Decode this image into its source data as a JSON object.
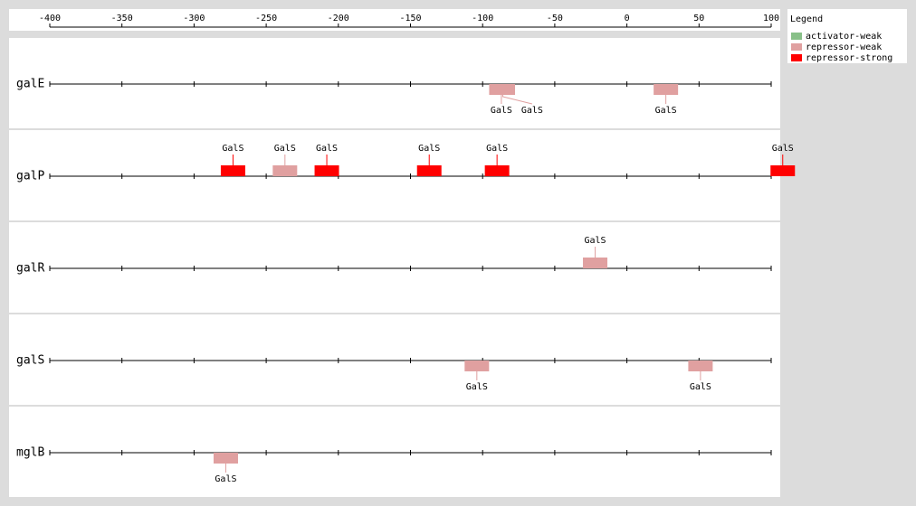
{
  "chart_data": {
    "type": "site-map",
    "legend_title": "Legend",
    "legend": [
      {
        "name": "activator-weak",
        "color": "#88c088"
      },
      {
        "name": "repressor-weak",
        "color": "#e0a0a0"
      },
      {
        "name": "repressor-strong",
        "color": "#ff0000"
      }
    ],
    "xlim": [
      -400,
      100
    ],
    "xticks": [
      -400,
      -350,
      -300,
      -250,
      -200,
      -150,
      -100,
      -50,
      0,
      50,
      100
    ],
    "genes": [
      {
        "name": "galE",
        "sites": [
          {
            "position": -87,
            "type": "repressor-weak",
            "label": "GalS",
            "label_side": "below"
          },
          {
            "position": -86,
            "type": "repressor-weak",
            "label": "GalS",
            "label_side": "below"
          },
          {
            "position": 27,
            "type": "repressor-weak",
            "label": "GalS",
            "label_side": "below"
          }
        ]
      },
      {
        "name": "galP",
        "sites": [
          {
            "position": -273,
            "type": "repressor-strong",
            "label": "GalS",
            "label_side": "above"
          },
          {
            "position": -237,
            "type": "repressor-weak",
            "label": "GalS",
            "label_side": "above"
          },
          {
            "position": -208,
            "type": "repressor-strong",
            "label": "GalS",
            "label_side": "above"
          },
          {
            "position": -137,
            "type": "repressor-strong",
            "label": "GalS",
            "label_side": "above"
          },
          {
            "position": -90,
            "type": "repressor-strong",
            "label": "GalS",
            "label_side": "above"
          },
          {
            "position": 108,
            "type": "repressor-strong",
            "label": "GalS",
            "label_side": "above"
          }
        ]
      },
      {
        "name": "galR",
        "sites": [
          {
            "position": -22,
            "type": "repressor-weak",
            "label": "GalS",
            "label_side": "above"
          }
        ]
      },
      {
        "name": "galS",
        "sites": [
          {
            "position": -104,
            "type": "repressor-weak",
            "label": "GalS",
            "label_side": "below"
          },
          {
            "position": 51,
            "type": "repressor-weak",
            "label": "GalS",
            "label_side": "below"
          }
        ]
      },
      {
        "name": "mglB",
        "sites": [
          {
            "position": -278,
            "type": "repressor-weak",
            "label": "GalS",
            "label_side": "below"
          }
        ]
      }
    ]
  }
}
